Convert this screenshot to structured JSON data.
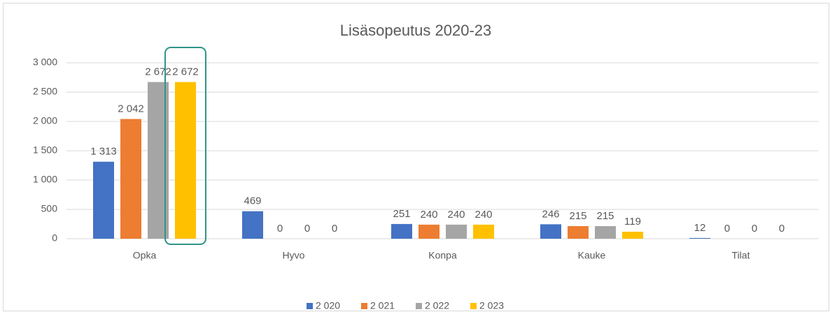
{
  "chart_data": {
    "type": "bar",
    "title": "Lisäsopeutus 2020-23",
    "categories": [
      "Opka",
      "Hyvo",
      "Konpa",
      "Kauke",
      "Tilat"
    ],
    "series": [
      {
        "name": "2 020",
        "color": "#4472c4",
        "values": [
          1313,
          469,
          251,
          246,
          12
        ],
        "value_labels": [
          "1 313",
          "469",
          "251",
          "246",
          "12"
        ]
      },
      {
        "name": "2 021",
        "color": "#ed7d31",
        "values": [
          2042,
          0,
          240,
          215,
          0
        ],
        "value_labels": [
          "2 042",
          "0",
          "240",
          "215",
          "0"
        ]
      },
      {
        "name": "2 022",
        "color": "#a5a5a5",
        "values": [
          2672,
          0,
          240,
          215,
          0
        ],
        "value_labels": [
          "2 672",
          "0",
          "240",
          "215",
          "0"
        ]
      },
      {
        "name": "2 023",
        "color": "#ffc000",
        "values": [
          2672,
          0,
          240,
          119,
          0
        ],
        "value_labels": [
          "2 672",
          "0",
          "240",
          "119",
          "0"
        ]
      }
    ],
    "ylim": [
      0,
      3000
    ],
    "yticks": [
      0,
      500,
      {
        "value": 1000,
        "label": "1 000"
      },
      {
        "value": 1500,
        "label": "1 500"
      },
      {
        "value": 2000,
        "label": "2 000"
      },
      {
        "value": 2500,
        "label": "2 500"
      },
      {
        "value": 3000,
        "label": "3 000"
      }
    ],
    "grid": true,
    "legend": "bottom"
  }
}
